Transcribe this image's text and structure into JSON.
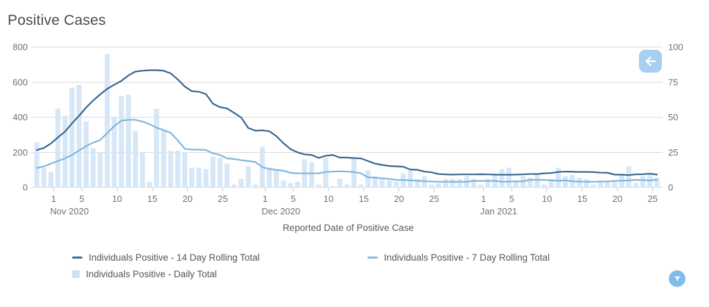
{
  "page": {
    "title": "Positive Cases"
  },
  "colors": {
    "rolling14_line": "#35648f",
    "rolling7_line": "#7fb6dc",
    "daily_bar": "#d6e7f7",
    "grid": "#dadada",
    "x_tick": "#c8c8c8",
    "back_button_bg": "#a9cff0",
    "filter_button_bg": "#7fbcea"
  },
  "legend": [
    {
      "id": "rolling14",
      "label": "Individuals Positive - 14 Day Rolling Total",
      "marker": "dash",
      "color": "#3c6d9c"
    },
    {
      "id": "rolling7",
      "label": "Individuals Positive - 7 Day Rolling Total",
      "marker": "dash",
      "color": "#85bcdf"
    },
    {
      "id": "daily",
      "label": "Individuals Positive - Daily Total",
      "marker": "square",
      "color": "#cbe2f6"
    }
  ],
  "chart_data": {
    "type": "bar+line combo, dual axis",
    "title": "Positive Cases",
    "xlabel": "Reported Date of Positive Case",
    "grid": "horizontal only",
    "legend_position": "bottom-left",
    "left_axis": {
      "range": [
        0,
        800
      ],
      "ticks": [
        0,
        200,
        400,
        600,
        800
      ],
      "used_by": [
        "rolling14",
        "rolling7"
      ]
    },
    "right_axis": {
      "range": [
        0,
        100
      ],
      "ticks": [
        0,
        25,
        50,
        75,
        100
      ],
      "used_by": [
        "daily"
      ]
    },
    "x": [
      "2020-10-30",
      "2020-10-31",
      "2020-11-01",
      "2020-11-02",
      "2020-11-03",
      "2020-11-04",
      "2020-11-05",
      "2020-11-06",
      "2020-11-07",
      "2020-11-08",
      "2020-11-09",
      "2020-11-10",
      "2020-11-11",
      "2020-11-12",
      "2020-11-13",
      "2020-11-14",
      "2020-11-15",
      "2020-11-16",
      "2020-11-17",
      "2020-11-18",
      "2020-11-19",
      "2020-11-20",
      "2020-11-21",
      "2020-11-22",
      "2020-11-23",
      "2020-11-24",
      "2020-11-25",
      "2020-11-26",
      "2020-11-27",
      "2020-11-28",
      "2020-11-29",
      "2020-11-30",
      "2020-12-01",
      "2020-12-02",
      "2020-12-03",
      "2020-12-04",
      "2020-12-05",
      "2020-12-06",
      "2020-12-07",
      "2020-12-08",
      "2020-12-09",
      "2020-12-10",
      "2020-12-11",
      "2020-12-12",
      "2020-12-13",
      "2020-12-14",
      "2020-12-15",
      "2020-12-16",
      "2020-12-17",
      "2020-12-18",
      "2020-12-19",
      "2020-12-20",
      "2020-12-21",
      "2020-12-22",
      "2020-12-23",
      "2020-12-24",
      "2020-12-25",
      "2020-12-26",
      "2020-12-27",
      "2020-12-28",
      "2020-12-29",
      "2020-12-30",
      "2020-12-31",
      "2021-01-01",
      "2021-01-02",
      "2021-01-03",
      "2021-01-04",
      "2021-01-05",
      "2021-01-06",
      "2021-01-07",
      "2021-01-08",
      "2021-01-09",
      "2021-01-10",
      "2021-01-11",
      "2021-01-12",
      "2021-01-13",
      "2021-01-14",
      "2021-01-15",
      "2021-01-16",
      "2021-01-17",
      "2021-01-18",
      "2021-01-19",
      "2021-01-20",
      "2021-01-21",
      "2021-01-22",
      "2021-01-23",
      "2021-01-24",
      "2021-01-25",
      "2021-01-26"
    ],
    "x_ticks": [
      {
        "index": 2,
        "label": "1",
        "month": "Nov 2020"
      },
      {
        "index": 6,
        "label": "5"
      },
      {
        "index": 11,
        "label": "10"
      },
      {
        "index": 16,
        "label": "15"
      },
      {
        "index": 21,
        "label": "20"
      },
      {
        "index": 26,
        "label": "25"
      },
      {
        "index": 32,
        "label": "1",
        "month": "Dec 2020"
      },
      {
        "index": 36,
        "label": "5"
      },
      {
        "index": 41,
        "label": "10"
      },
      {
        "index": 46,
        "label": "15"
      },
      {
        "index": 51,
        "label": "20"
      },
      {
        "index": 56,
        "label": "25"
      },
      {
        "index": 63,
        "label": "1",
        "month": "Jan 2021"
      },
      {
        "index": 67,
        "label": "5"
      },
      {
        "index": 72,
        "label": "10"
      },
      {
        "index": 77,
        "label": "15"
      },
      {
        "index": 82,
        "label": "20"
      },
      {
        "index": 87,
        "label": "25"
      }
    ],
    "series": [
      {
        "id": "rolling14",
        "name": "Individuals Positive - 14 Day Rolling Total",
        "type": "line",
        "axis": "left",
        "color": "#35648f",
        "values": [
          213,
          225,
          250,
          285,
          318,
          365,
          408,
          455,
          495,
          530,
          562,
          585,
          607,
          638,
          660,
          665,
          668,
          668,
          665,
          650,
          615,
          575,
          548,
          545,
          532,
          477,
          457,
          450,
          425,
          398,
          339,
          323,
          325,
          320,
          292,
          252,
          218,
          200,
          188,
          185,
          168,
          180,
          185,
          170,
          170,
          167,
          165,
          150,
          135,
          128,
          122,
          120,
          118,
          102,
          100,
          90,
          86,
          76,
          74,
          73,
          74,
          74,
          74,
          75,
          74,
          73,
          72,
          72,
          73,
          74,
          76,
          76,
          80,
          82,
          88,
          90,
          89,
          88,
          88,
          87,
          84,
          83,
          73,
          72,
          70,
          74,
          75,
          78,
          73
        ]
      },
      {
        "id": "rolling7",
        "name": "Individuals Positive - 7 Day Rolling Total",
        "type": "line",
        "axis": "left",
        "color": "#7fb6dc",
        "values": [
          110,
          120,
          135,
          150,
          165,
          185,
          210,
          235,
          255,
          270,
          310,
          350,
          380,
          385,
          385,
          375,
          360,
          340,
          327,
          310,
          268,
          220,
          215,
          215,
          213,
          194,
          185,
          165,
          162,
          155,
          150,
          145,
          115,
          105,
          100,
          95,
          83,
          80,
          80,
          80,
          80,
          88,
          90,
          92,
          90,
          88,
          80,
          57,
          55,
          52,
          48,
          43,
          42,
          40,
          38,
          35,
          33,
          32,
          32,
          32,
          32,
          32,
          37,
          37,
          37,
          37,
          32,
          33,
          34,
          35,
          43,
          43,
          43,
          40,
          38,
          40,
          35,
          33,
          32,
          32,
          33,
          34,
          37,
          38,
          40,
          43,
          42,
          40,
          44
        ]
      },
      {
        "id": "daily",
        "name": "Individuals Positive - Daily Total",
        "type": "bar",
        "axis": "right",
        "color": "#d6e7f7",
        "values": [
          32,
          14,
          11,
          56,
          51,
          71,
          73,
          47,
          28,
          25,
          95,
          50,
          65,
          66,
          40,
          25,
          4,
          56,
          41,
          26,
          26,
          25,
          14,
          14,
          13,
          22,
          21,
          17,
          2,
          6,
          15,
          2,
          29,
          14,
          13,
          5,
          3,
          4,
          20,
          18,
          2,
          21,
          1,
          6,
          2,
          21,
          2,
          12,
          8,
          6,
          5,
          4,
          10,
          12,
          6,
          8,
          2,
          3,
          6,
          6,
          6,
          8,
          6,
          2,
          6,
          9,
          13,
          14,
          5,
          8,
          7,
          10,
          2,
          6,
          14,
          8,
          9,
          7,
          6,
          2,
          5,
          5,
          4,
          10,
          15,
          3,
          8,
          9,
          7
        ]
      }
    ]
  }
}
